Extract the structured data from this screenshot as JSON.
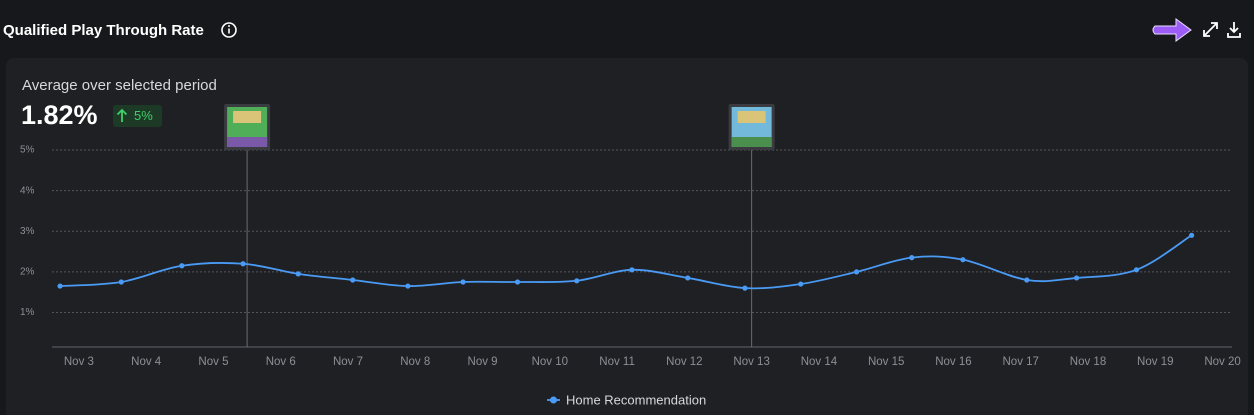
{
  "header": {
    "title": "Qualified Play Through Rate"
  },
  "summary": {
    "label": "Average over selected period",
    "value": "1.82%",
    "change": "5%"
  },
  "chart_data": {
    "type": "line",
    "x": [
      2.72,
      3.63,
      4.53,
      5.44,
      6.26,
      7.07,
      7.89,
      8.71,
      9.52,
      10.4,
      11.22,
      12.05,
      12.9,
      13.73,
      14.56,
      15.38,
      16.14,
      17.09,
      17.83,
      18.72,
      19.54
    ],
    "series": [
      {
        "name": "Home Recommendation",
        "color": "#4a9bf5",
        "values": [
          1.65,
          1.75,
          2.15,
          2.2,
          1.95,
          1.8,
          1.65,
          1.75,
          1.75,
          1.78,
          2.05,
          1.85,
          1.6,
          1.7,
          2.0,
          2.35,
          2.3,
          1.8,
          1.85,
          2.05,
          2.9
        ]
      }
    ],
    "xlim": [
      2.6,
      20.2
    ],
    "xticks": [
      {
        "value": 3,
        "label": "Nov 3"
      },
      {
        "value": 4,
        "label": "Nov 4"
      },
      {
        "value": 5,
        "label": "Nov 5"
      },
      {
        "value": 6,
        "label": "Nov 6"
      },
      {
        "value": 7,
        "label": "Nov 7"
      },
      {
        "value": 8,
        "label": "Nov 8"
      },
      {
        "value": 9,
        "label": "Nov 9"
      },
      {
        "value": 10,
        "label": "Nov 10"
      },
      {
        "value": 11,
        "label": "Nov 11"
      },
      {
        "value": 12,
        "label": "Nov 12"
      },
      {
        "value": 13,
        "label": "Nov 13"
      },
      {
        "value": 14,
        "label": "Nov 14"
      },
      {
        "value": 15,
        "label": "Nov 15"
      },
      {
        "value": 16,
        "label": "Nov 16"
      },
      {
        "value": 17,
        "label": "Nov 17"
      },
      {
        "value": 18,
        "label": "Nov 18"
      },
      {
        "value": 19,
        "label": "Nov 19"
      },
      {
        "value": 20,
        "label": "Nov 20"
      }
    ],
    "ylim": [
      0.15,
      5
    ],
    "yticks": [
      {
        "value": 1,
        "label": "1%"
      },
      {
        "value": 2,
        "label": "2%"
      },
      {
        "value": 3,
        "label": "3%"
      },
      {
        "value": 4,
        "label": "4%"
      },
      {
        "value": 5,
        "label": "5%"
      }
    ],
    "grid": true,
    "event_markers": [
      {
        "x": 5.5
      },
      {
        "x": 13
      }
    ]
  }
}
